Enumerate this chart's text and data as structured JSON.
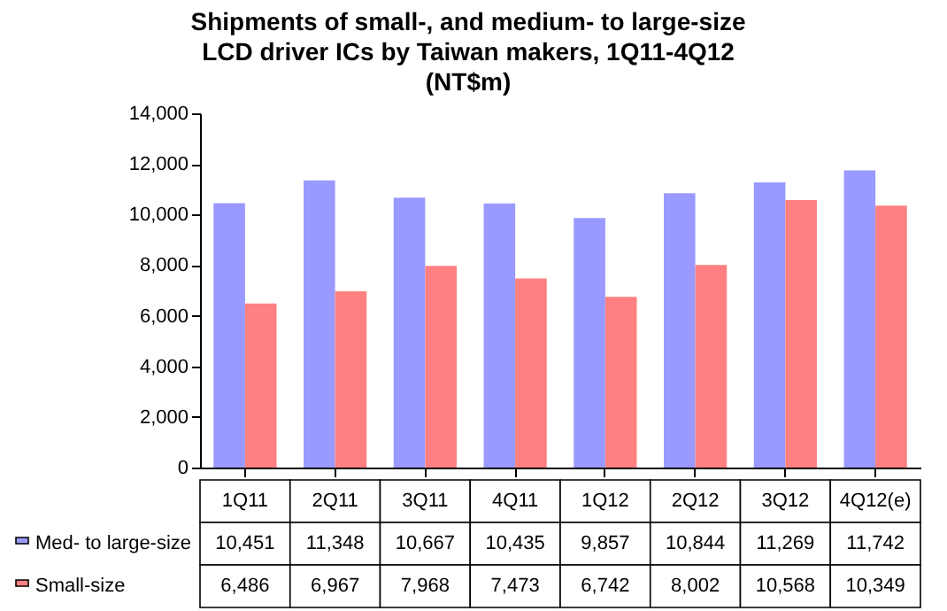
{
  "chart_data": {
    "type": "bar",
    "title": "Shipments of small-, and medium- to large-size LCD driver ICs by Taiwan makers, 1Q11-4Q12 (NT$m)",
    "categories": [
      "1Q11",
      "2Q11",
      "3Q11",
      "4Q11",
      "1Q12",
      "2Q12",
      "3Q12",
      "4Q12(e)"
    ],
    "series": [
      {
        "name": "Med- to large-size",
        "color": "#9999ff",
        "values": [
          10451,
          11348,
          10667,
          10435,
          9857,
          10844,
          11269,
          11742
        ],
        "value_labels": [
          "10,451",
          "11,348",
          "10,667",
          "10,435",
          "9,857",
          "10,844",
          "11,269",
          "11,742"
        ]
      },
      {
        "name": "Small-size",
        "color": "#ff8080",
        "values": [
          6486,
          6967,
          7968,
          7473,
          6742,
          8002,
          10568,
          10349
        ],
        "value_labels": [
          "6,486",
          "6,967",
          "7,968",
          "7,473",
          "6,742",
          "8,002",
          "10,568",
          "10,349"
        ]
      }
    ],
    "ylim": [
      0,
      14000
    ],
    "yticks": [
      {
        "value": 0,
        "label": "0"
      },
      {
        "value": 2000,
        "label": "2,000"
      },
      {
        "value": 4000,
        "label": "4,000"
      },
      {
        "value": 6000,
        "label": "6,000"
      },
      {
        "value": 8000,
        "label": "8,000"
      },
      {
        "value": 10000,
        "label": "10,000"
      },
      {
        "value": 12000,
        "label": "12,000"
      },
      {
        "value": 14000,
        "label": "14,000"
      }
    ],
    "grid": false,
    "legend": "bottom left"
  }
}
